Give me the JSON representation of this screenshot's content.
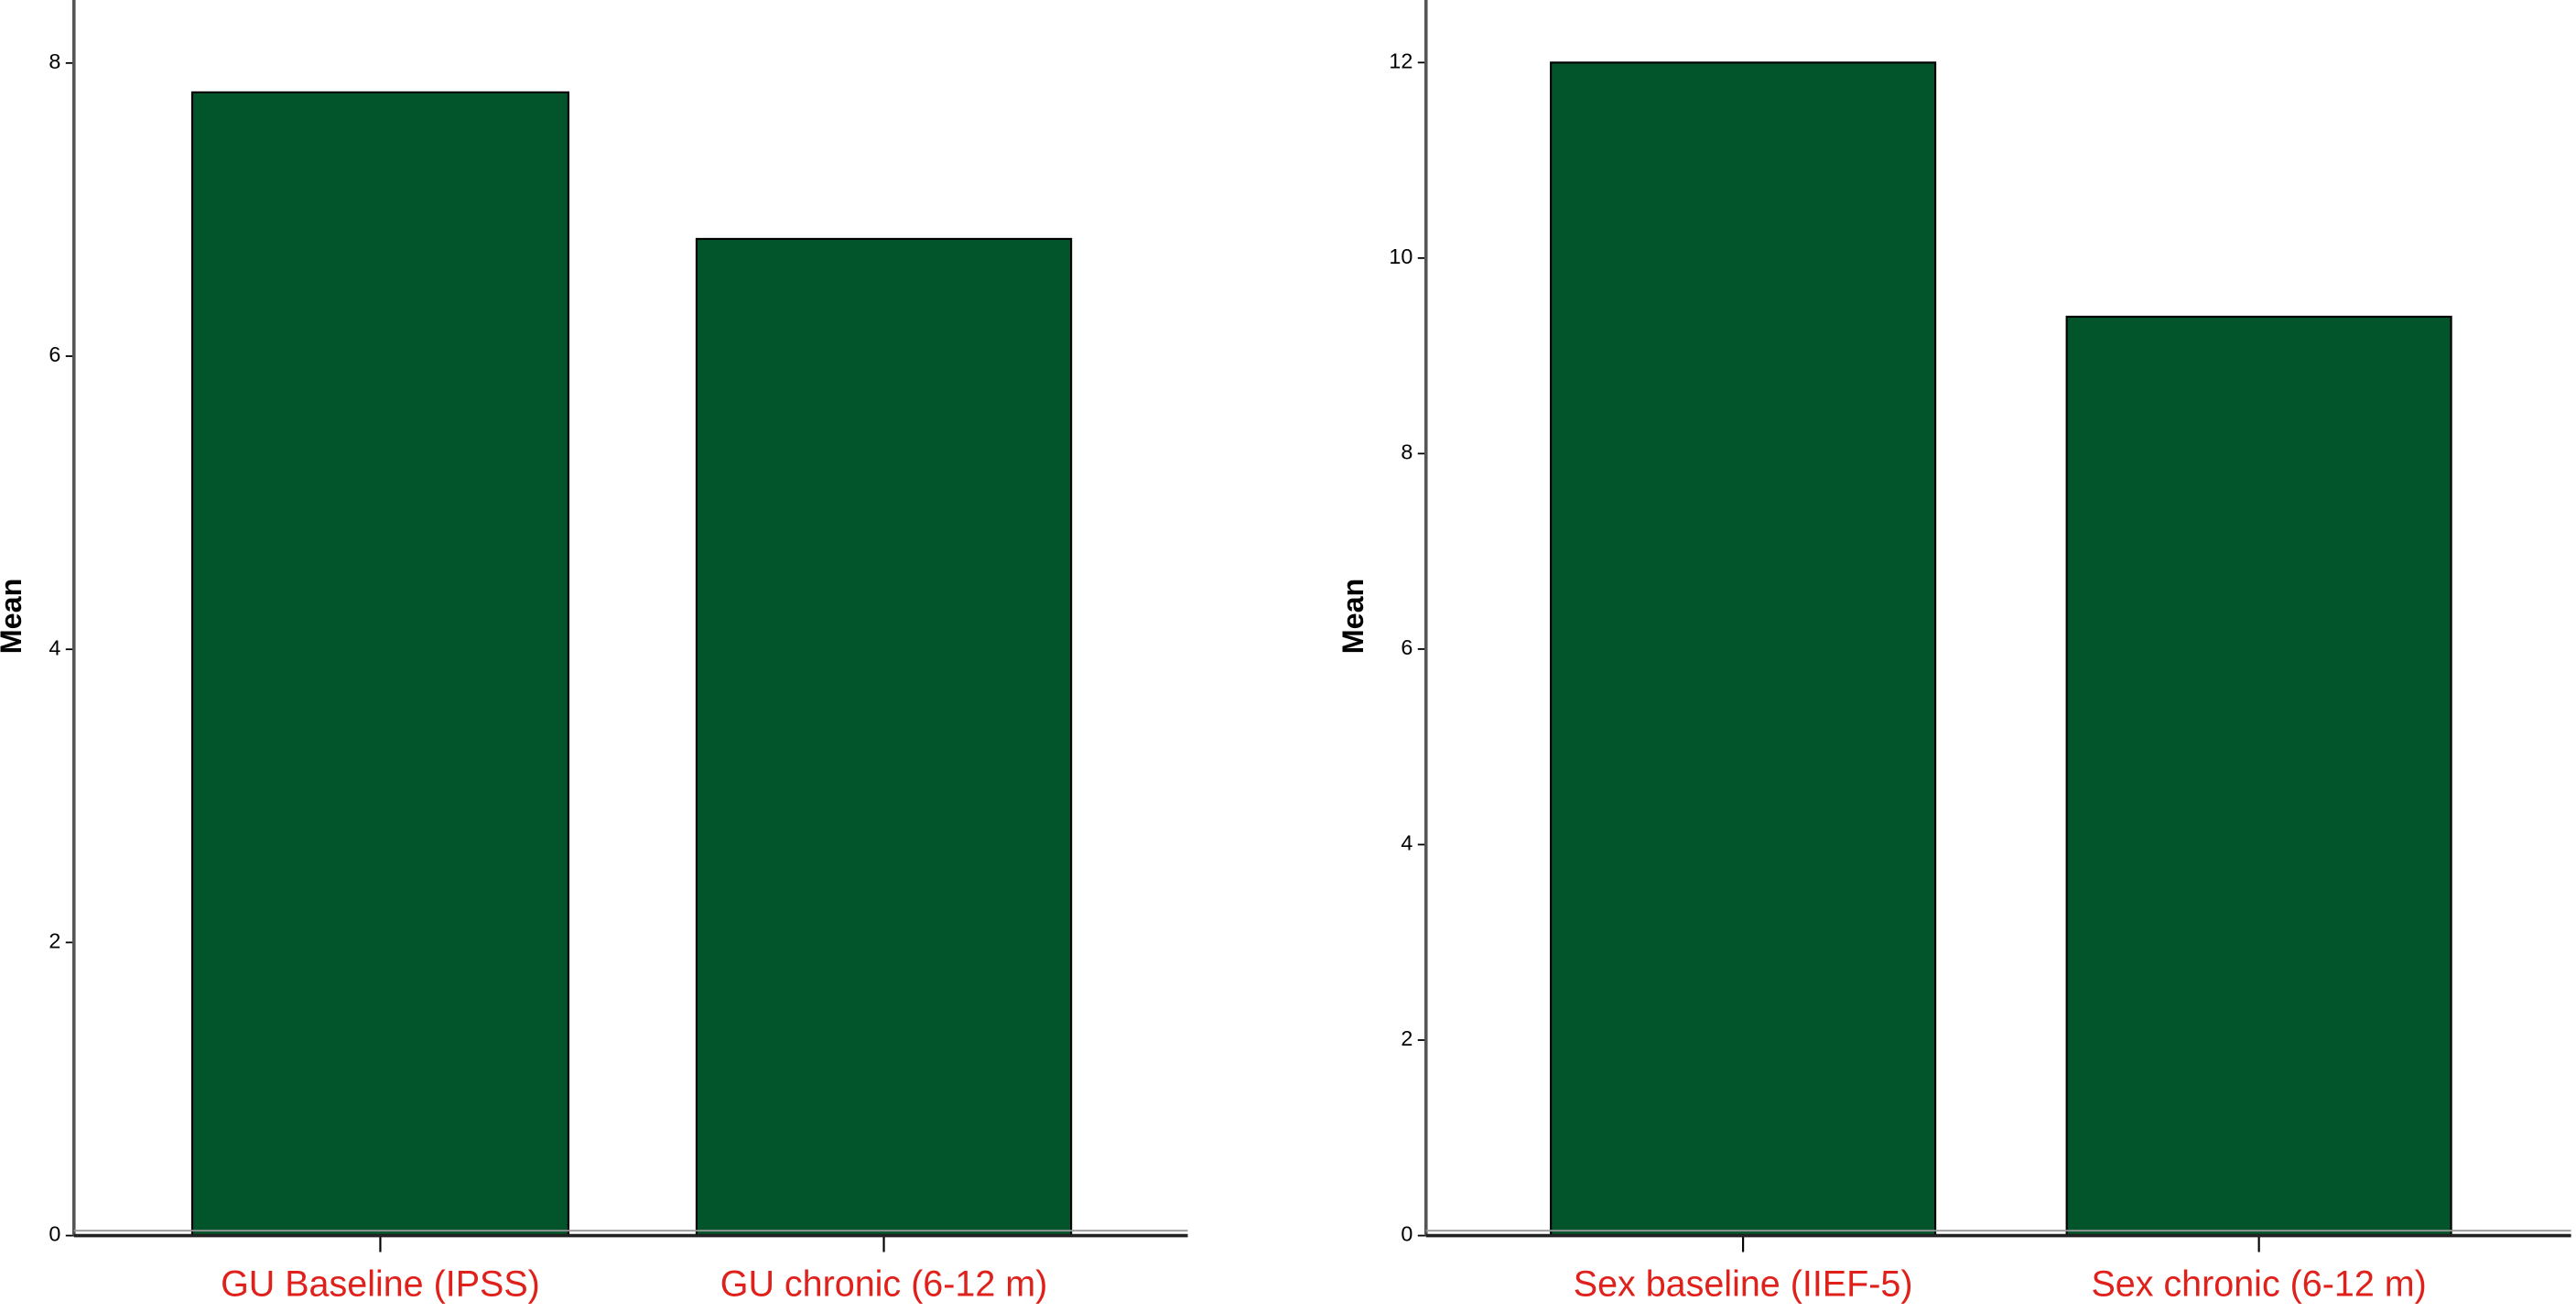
{
  "chart_data": [
    {
      "type": "bar",
      "y_label": "Mean",
      "categories": [
        "GU Baseline (IPSS)",
        "GU chronic (6-12 m)"
      ],
      "values": [
        7.8,
        6.8
      ],
      "color": "#02542b",
      "ylim": [
        0,
        8.43
      ],
      "yticks": [
        0,
        2,
        4,
        6,
        8
      ]
    },
    {
      "type": "bar",
      "y_label": "Mean",
      "categories": [
        "Sex baseline (IIEF-5)",
        "Sex chronic (6-12 m)"
      ],
      "values": [
        12.0,
        9.4
      ],
      "color": "#02542b",
      "ylim": [
        0,
        12.64
      ],
      "yticks": [
        0,
        2,
        4,
        6,
        8,
        10,
        12
      ]
    }
  ]
}
